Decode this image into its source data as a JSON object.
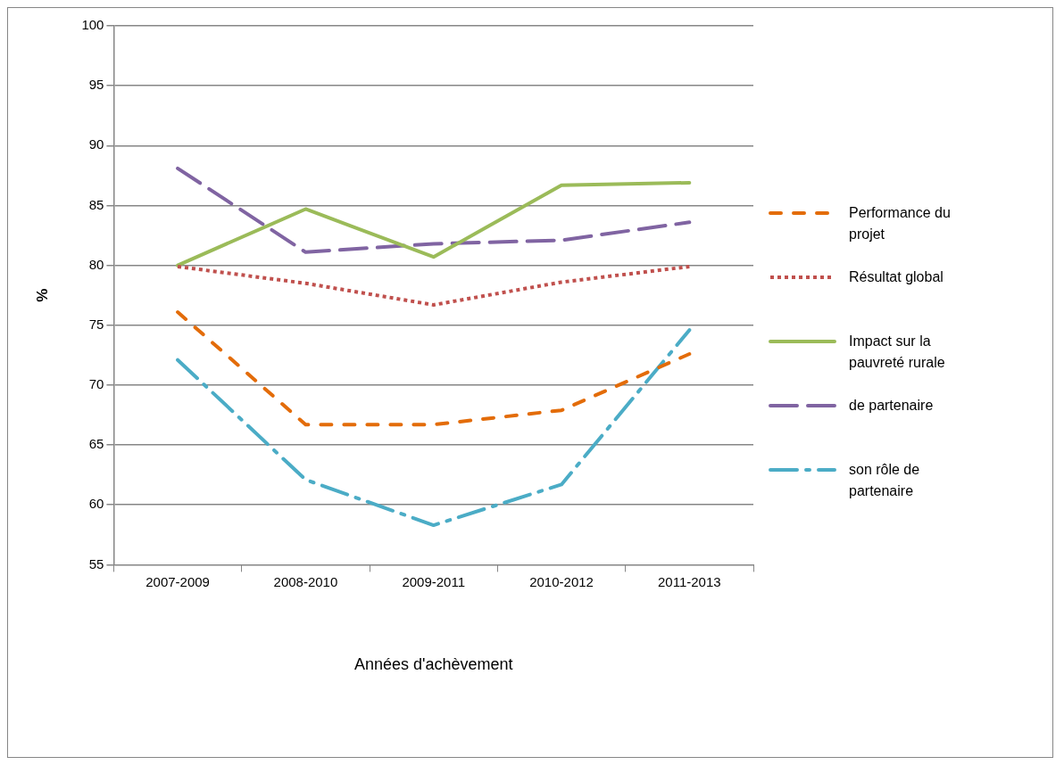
{
  "chart_data": {
    "type": "line",
    "xlabel": "Années d'achèvement",
    "ylabel": "%",
    "categories": [
      "2007-2009",
      "2008-2010",
      "2009-2011",
      "2010-2012",
      "2011-2013"
    ],
    "ylim": [
      55,
      100
    ],
    "yticks": [
      55,
      60,
      65,
      70,
      75,
      80,
      85,
      90,
      95,
      100
    ],
    "grid": "y",
    "legend": "right",
    "marker": "none",
    "series": [
      {
        "name": "Performance du projet",
        "color": "#e36c09",
        "line_style": "dashed",
        "values": [
          76.1,
          66.7,
          66.7,
          67.9,
          72.6
        ]
      },
      {
        "name": "Résultat global",
        "color": "#c0504d",
        "line_style": "dotted",
        "values": [
          79.9,
          78.5,
          76.7,
          78.6,
          79.9
        ]
      },
      {
        "name": "Impact sur la pauvreté rurale",
        "color": "#9bbb59",
        "line_style": "solid",
        "values": [
          80,
          84.7,
          80.7,
          86.7,
          86.9
        ]
      },
      {
        "name": "de partenaire",
        "color": "#8064a2",
        "line_style": "dashed",
        "values": [
          88.1,
          81.1,
          81.8,
          82.1,
          83.6
        ]
      },
      {
        "name": "son rôle de partenaire",
        "color": "#4bacc6",
        "line_style": "dashed",
        "values": [
          72.1,
          62.1,
          58.3,
          61.7,
          74.6
        ]
      }
    ]
  }
}
